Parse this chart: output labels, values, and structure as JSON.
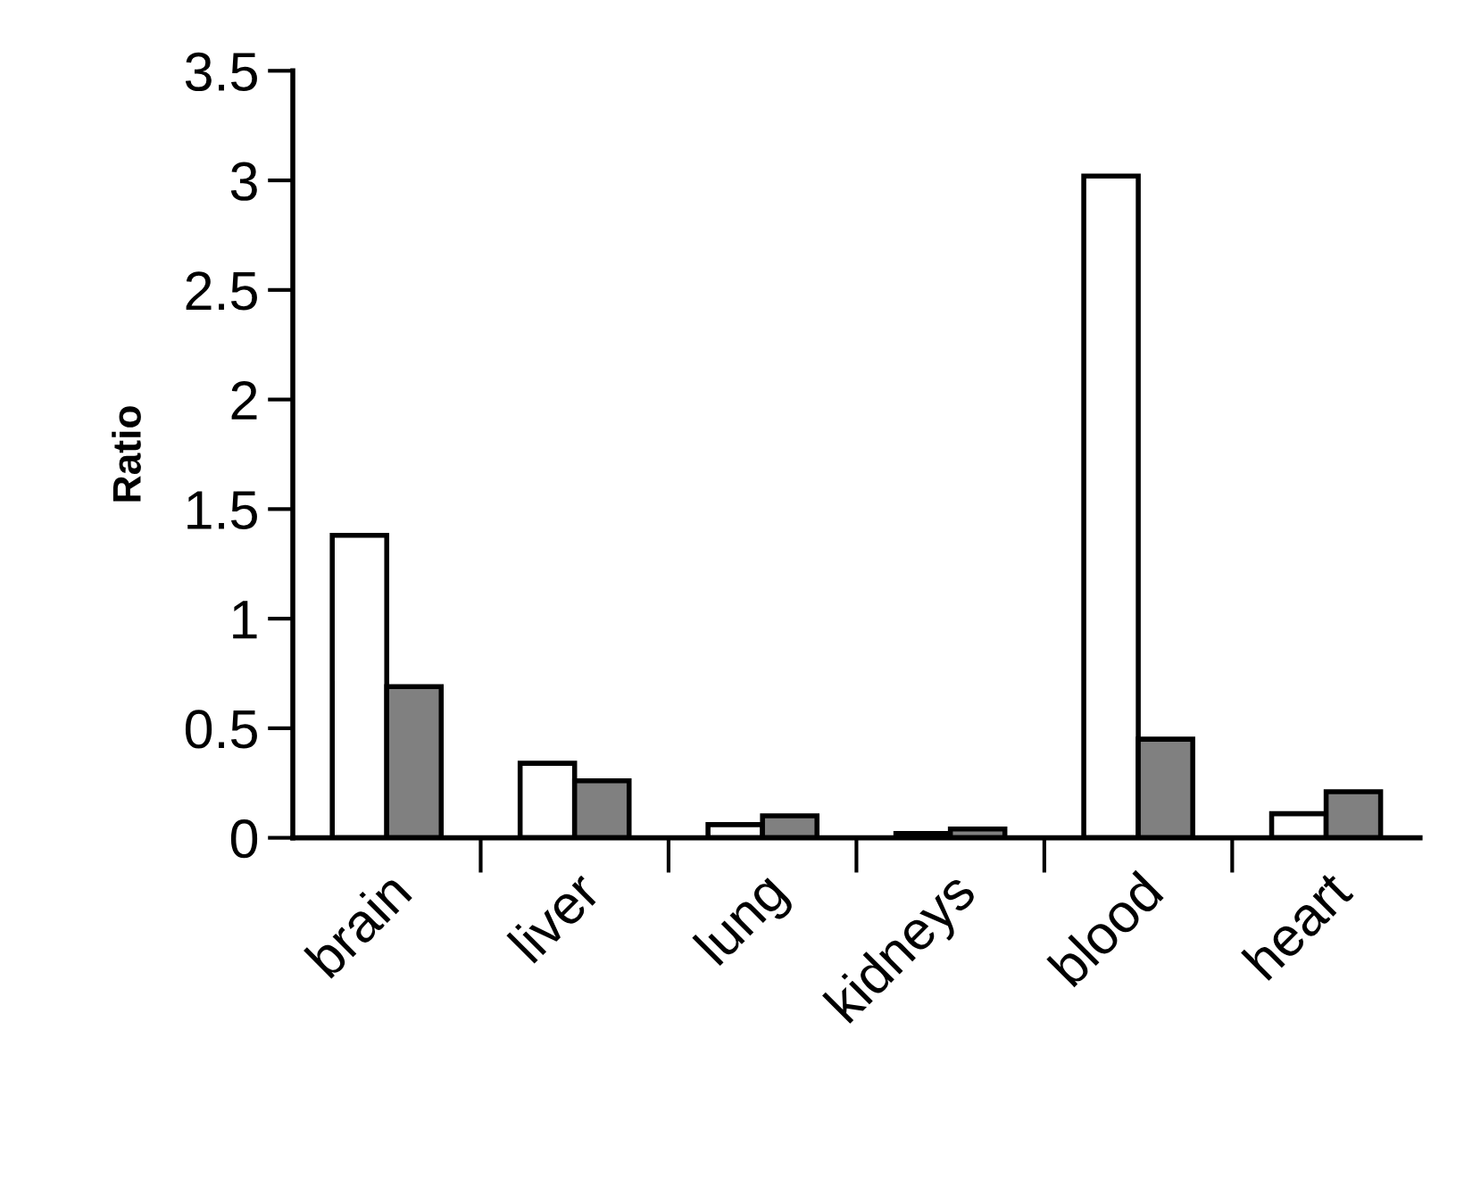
{
  "chart_data": {
    "type": "bar",
    "ylabel": "Ratio",
    "categories": [
      "brain",
      "liver",
      "lung",
      "kidneys",
      "blood",
      "heart"
    ],
    "series": [
      {
        "color": "#ffffff",
        "values": [
          1.38,
          0.34,
          0.06,
          0.02,
          3.02,
          0.11
        ]
      },
      {
        "color": "#808080",
        "values": [
          0.69,
          0.26,
          0.1,
          0.04,
          0.45,
          0.21
        ]
      }
    ],
    "ylim": [
      0,
      3.5
    ],
    "yticks": [
      0,
      0.5,
      1,
      1.5,
      2,
      2.5,
      3,
      3.5
    ],
    "grid": false,
    "legend": false
  }
}
